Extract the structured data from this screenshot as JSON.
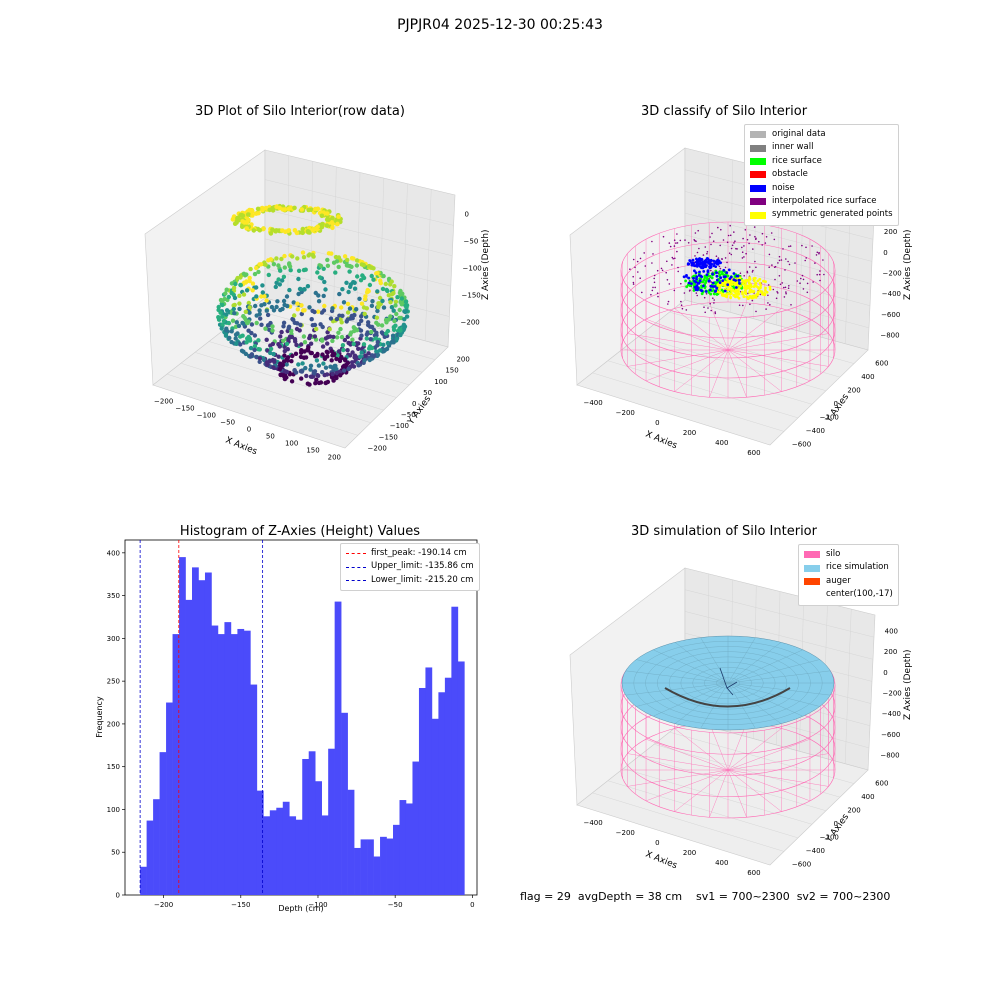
{
  "suptitle": "PJPJR04 2025-12-30 00:25:43",
  "footer": "flag = 29  avgDepth = 38 cm    sv1 = 700~2300  sv2 = 700~2300",
  "colors": {
    "hist_bar": "#4b4bfa",
    "first_peak": "#ff0000",
    "limits": "#0000cc",
    "silo": "#ff69b4",
    "rice_sim": "#87ceeb",
    "auger": "#ff4500"
  },
  "plot_raw": {
    "title": "3D Plot of Silo Interior(row data)",
    "xlabel": "X Axies",
    "ylabel": "Y Axies",
    "zlabel": "Z Axies (Depth)",
    "xticks": [
      "−200",
      "−150",
      "−100",
      "−50",
      "0",
      "50",
      "100",
      "150",
      "200"
    ],
    "yticks": [
      "200",
      "150",
      "100",
      "50",
      "0",
      "−50",
      "−100",
      "−150",
      "−200"
    ],
    "zticks": [
      "0",
      "−50",
      "−100",
      "−150",
      "−200"
    ]
  },
  "plot_classify": {
    "title": "3D classify of Silo Interior",
    "xlabel": "X Axies",
    "ylabel": "Y Axies",
    "zlabel": "Z Axies (Depth)",
    "xticks": [
      "−400",
      "−200",
      "0",
      "200",
      "400",
      "600"
    ],
    "yticks": [
      "600",
      "400",
      "200",
      "0",
      "−200",
      "−400",
      "−600"
    ],
    "zticks": [
      "400",
      "200",
      "0",
      "−200",
      "−400",
      "−600",
      "−800"
    ],
    "legend": [
      {
        "label": "original data",
        "color": "#b3b3b3"
      },
      {
        "label": "inner wall",
        "color": "#808080"
      },
      {
        "label": "rice surface",
        "color": "#00ff00"
      },
      {
        "label": "obstacle",
        "color": "#ff0000"
      },
      {
        "label": "noise",
        "color": "#0000ff"
      },
      {
        "label": "interpolated rice surface",
        "color": "#800080"
      },
      {
        "label": "symmetric generated points",
        "color": "#ffff00"
      }
    ]
  },
  "plot_sim": {
    "title": "3D simulation of Silo Interior",
    "xlabel": "X Axies",
    "ylabel": "Y Axies",
    "zlabel": "Z Axies (Depth)",
    "xticks": [
      "−400",
      "−200",
      "0",
      "200",
      "400",
      "600"
    ],
    "yticks": [
      "600",
      "400",
      "200",
      "0",
      "−200",
      "−400",
      "−600"
    ],
    "zticks": [
      "400",
      "200",
      "0",
      "−200",
      "−400",
      "−600",
      "−800"
    ],
    "legend": [
      {
        "label": "silo",
        "color": "#ff69b4"
      },
      {
        "label": "rice simulation",
        "color": "#87ceeb"
      },
      {
        "label": "auger",
        "color": "#ff4500"
      },
      {
        "label": "center(100,-17)",
        "color": "#ffffff"
      }
    ]
  },
  "chart_data": {
    "type": "bar",
    "title": "Histogram of Z-Axies (Height) Values",
    "xlabel": "Depth (cm)",
    "ylabel": "Frequency",
    "xlim": [
      -225,
      3
    ],
    "ylim": [
      0,
      415
    ],
    "xticks": [
      -200,
      -150,
      -100,
      -50,
      0
    ],
    "yticks": [
      0,
      50,
      100,
      150,
      200,
      250,
      300,
      350,
      400
    ],
    "bin_start": -215.2,
    "bin_width": 4.2,
    "values": [
      33,
      87,
      112,
      167,
      225,
      305,
      395,
      345,
      383,
      368,
      377,
      315,
      305,
      319,
      305,
      311,
      309,
      246,
      122,
      92,
      99,
      102,
      109,
      92,
      88,
      159,
      168,
      133,
      93,
      171,
      343,
      213,
      123,
      55,
      65,
      65,
      45,
      68,
      66,
      82,
      111,
      107,
      156,
      242,
      266,
      206,
      237,
      254,
      337,
      273
    ],
    "vlines": [
      {
        "label": "first_peak: -190.14 cm",
        "x": -190.14,
        "color": "#ff0000"
      },
      {
        "label": "Upper_limit: -135.86 cm",
        "x": -135.86,
        "color": "#0000cc"
      },
      {
        "label": "Lower_limit: -215.20 cm",
        "x": -215.2,
        "color": "#0000cc"
      }
    ],
    "legend_position": "top-right",
    "grid": false
  }
}
